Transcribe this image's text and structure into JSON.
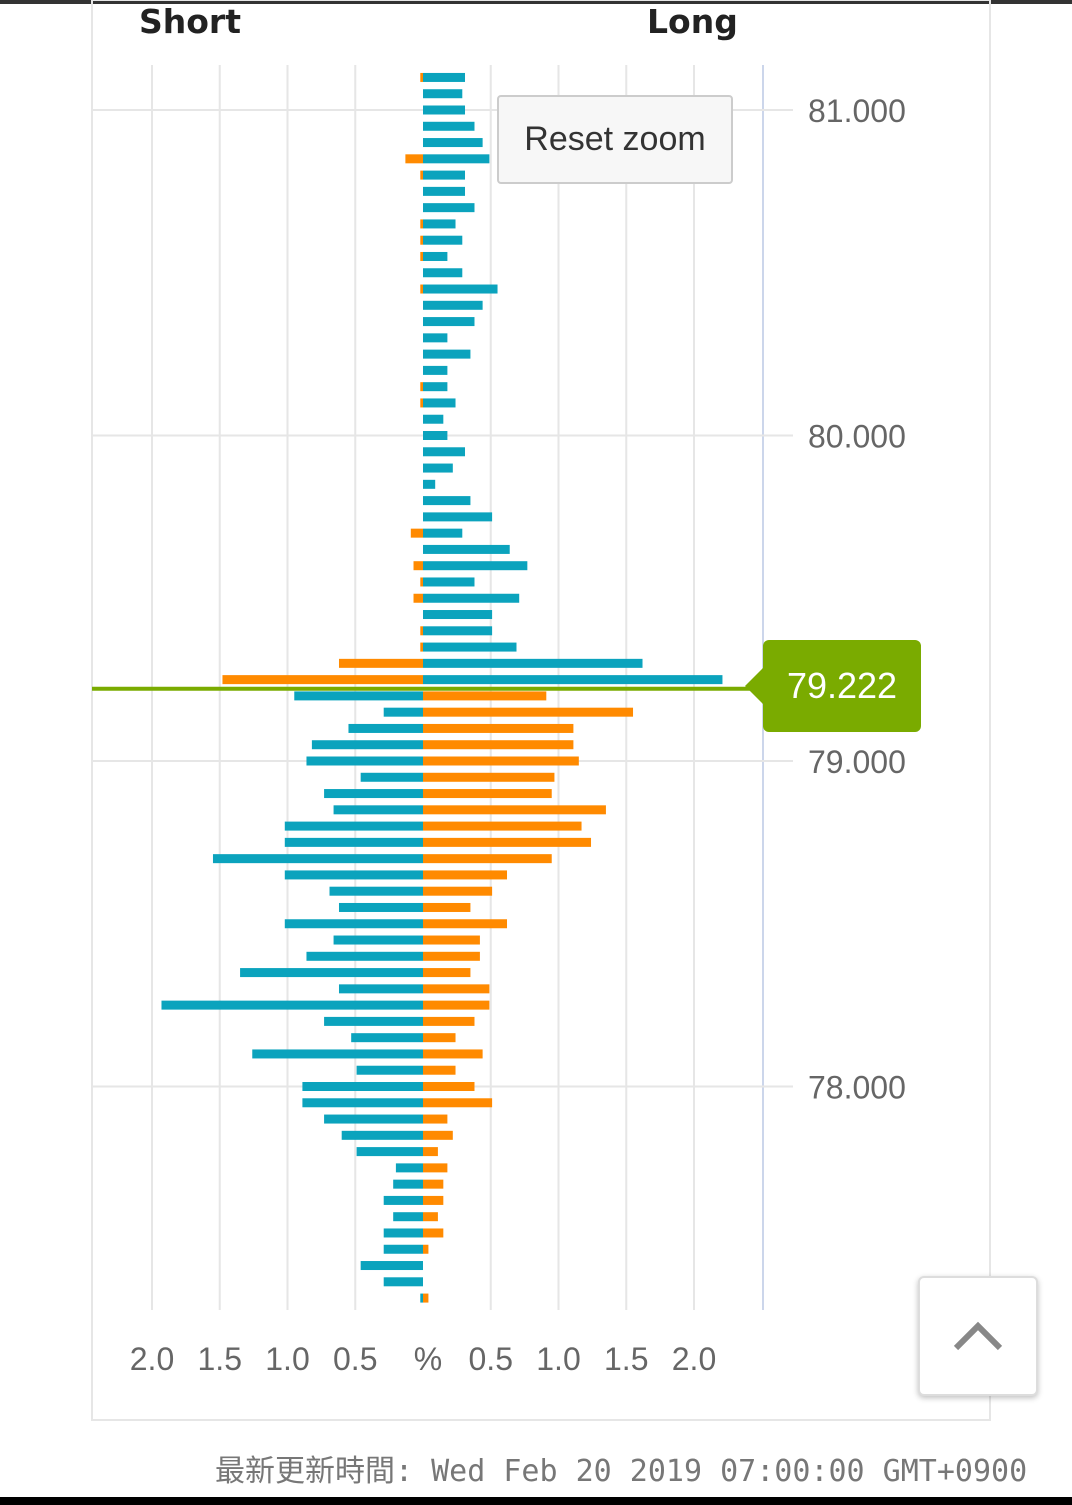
{
  "chart_data": {
    "type": "bar",
    "orientation": "horizontal-butterfly",
    "left_header": "Short",
    "right_header": "Long",
    "unit_label": "%",
    "x_ticks_left": [
      "2.0",
      "1.5",
      "1.0",
      "0.5"
    ],
    "x_ticks_right": [
      "0.5",
      "1.0",
      "1.5",
      "2.0"
    ],
    "x_max": 2.5,
    "y_ticks": [
      "81.000",
      "80.000",
      "79.000",
      "78.000"
    ],
    "y_tick_values": [
      81,
      80,
      79,
      78
    ],
    "y_range": [
      77.24,
      81.14
    ],
    "current_price": 79.222,
    "current_price_label": "79.222",
    "colors": {
      "blue": "#0ba3bd",
      "orange": "#ff8a00",
      "price": "#7aab00"
    },
    "rows": [
      {
        "price": 81.1,
        "short": 0.02,
        "long": 0.31
      },
      {
        "price": 81.05,
        "short": 0,
        "long": 0.29
      },
      {
        "price": 81.0,
        "short": 0,
        "long": 0.31
      },
      {
        "price": 80.95,
        "short": 0,
        "long": 0.38
      },
      {
        "price": 80.9,
        "short": 0,
        "long": 0.44
      },
      {
        "price": 80.85,
        "short": 0.13,
        "long": 0.49
      },
      {
        "price": 80.8,
        "short": 0.02,
        "long": 0.31
      },
      {
        "price": 80.75,
        "short": 0,
        "long": 0.31
      },
      {
        "price": 80.7,
        "short": 0,
        "long": 0.38
      },
      {
        "price": 80.65,
        "short": 0.02,
        "long": 0.24
      },
      {
        "price": 80.6,
        "short": 0.02,
        "long": 0.29
      },
      {
        "price": 80.55,
        "short": 0.02,
        "long": 0.18
      },
      {
        "price": 80.5,
        "short": 0,
        "long": 0.29
      },
      {
        "price": 80.45,
        "short": 0.02,
        "long": 0.55
      },
      {
        "price": 80.4,
        "short": 0,
        "long": 0.44
      },
      {
        "price": 80.35,
        "short": 0,
        "long": 0.38
      },
      {
        "price": 80.3,
        "short": 0,
        "long": 0.18
      },
      {
        "price": 80.25,
        "short": 0,
        "long": 0.35
      },
      {
        "price": 80.2,
        "short": 0,
        "long": 0.18
      },
      {
        "price": 80.15,
        "short": 0.02,
        "long": 0.18
      },
      {
        "price": 80.1,
        "short": 0.02,
        "long": 0.24
      },
      {
        "price": 80.05,
        "short": 0,
        "long": 0.15
      },
      {
        "price": 80.0,
        "short": 0,
        "long": 0.18
      },
      {
        "price": 79.95,
        "short": 0,
        "long": 0.31
      },
      {
        "price": 79.9,
        "short": 0,
        "long": 0.22
      },
      {
        "price": 79.85,
        "short": 0,
        "long": 0.09
      },
      {
        "price": 79.8,
        "short": 0,
        "long": 0.35
      },
      {
        "price": 79.75,
        "short": 0,
        "long": 0.51
      },
      {
        "price": 79.7,
        "short": 0.09,
        "long": 0.29
      },
      {
        "price": 79.65,
        "short": 0,
        "long": 0.64
      },
      {
        "price": 79.6,
        "short": 0.07,
        "long": 0.77
      },
      {
        "price": 79.55,
        "short": 0.02,
        "long": 0.38
      },
      {
        "price": 79.5,
        "short": 0.07,
        "long": 0.71
      },
      {
        "price": 79.45,
        "short": 0,
        "long": 0.51
      },
      {
        "price": 79.4,
        "short": 0.02,
        "long": 0.51
      },
      {
        "price": 79.35,
        "short": 0.02,
        "long": 0.69
      },
      {
        "price": 79.3,
        "short": 0.62,
        "long": 1.62
      },
      {
        "price": 79.25,
        "short": 1.48,
        "long": 2.21
      },
      {
        "price": 79.2,
        "short": 0.95,
        "long": 0.91
      },
      {
        "price": 79.15,
        "short": 0.29,
        "long": 1.55
      },
      {
        "price": 79.1,
        "short": 0.55,
        "long": 1.11
      },
      {
        "price": 79.05,
        "short": 0.82,
        "long": 1.11
      },
      {
        "price": 79.0,
        "short": 0.86,
        "long": 1.15
      },
      {
        "price": 78.95,
        "short": 0.46,
        "long": 0.97
      },
      {
        "price": 78.9,
        "short": 0.73,
        "long": 0.95
      },
      {
        "price": 78.85,
        "short": 0.66,
        "long": 1.35
      },
      {
        "price": 78.8,
        "short": 1.02,
        "long": 1.17
      },
      {
        "price": 78.75,
        "short": 1.02,
        "long": 1.24
      },
      {
        "price": 78.7,
        "short": 1.55,
        "long": 0.95
      },
      {
        "price": 78.65,
        "short": 1.02,
        "long": 0.62
      },
      {
        "price": 78.6,
        "short": 0.69,
        "long": 0.51
      },
      {
        "price": 78.55,
        "short": 0.62,
        "long": 0.35
      },
      {
        "price": 78.5,
        "short": 1.02,
        "long": 0.62
      },
      {
        "price": 78.45,
        "short": 0.66,
        "long": 0.42
      },
      {
        "price": 78.4,
        "short": 0.86,
        "long": 0.42
      },
      {
        "price": 78.35,
        "short": 1.35,
        "long": 0.35
      },
      {
        "price": 78.3,
        "short": 0.62,
        "long": 0.49
      },
      {
        "price": 78.25,
        "short": 1.93,
        "long": 0.49
      },
      {
        "price": 78.2,
        "short": 0.73,
        "long": 0.38
      },
      {
        "price": 78.15,
        "short": 0.53,
        "long": 0.24
      },
      {
        "price": 78.1,
        "short": 1.26,
        "long": 0.44
      },
      {
        "price": 78.05,
        "short": 0.49,
        "long": 0.24
      },
      {
        "price": 78.0,
        "short": 0.89,
        "long": 0.38
      },
      {
        "price": 77.95,
        "short": 0.89,
        "long": 0.51
      },
      {
        "price": 77.9,
        "short": 0.73,
        "long": 0.18
      },
      {
        "price": 77.85,
        "short": 0.6,
        "long": 0.22
      },
      {
        "price": 77.8,
        "short": 0.49,
        "long": 0.11
      },
      {
        "price": 77.75,
        "short": 0.2,
        "long": 0.18
      },
      {
        "price": 77.7,
        "short": 0.22,
        "long": 0.15
      },
      {
        "price": 77.65,
        "short": 0.29,
        "long": 0.15
      },
      {
        "price": 77.6,
        "short": 0.22,
        "long": 0.11
      },
      {
        "price": 77.55,
        "short": 0.29,
        "long": 0.15
      },
      {
        "price": 77.5,
        "short": 0.29,
        "long": 0.04
      },
      {
        "price": 77.45,
        "short": 0.46,
        "long": 0
      },
      {
        "price": 77.4,
        "short": 0.29,
        "long": 0
      },
      {
        "price": 77.35,
        "short": 0.02,
        "long": 0.04
      }
    ]
  },
  "controls": {
    "reset_zoom": "Reset zoom"
  },
  "footer": {
    "updated": "最新更新時間: Wed Feb 20 2019 07:00:00 GMT+0900"
  }
}
